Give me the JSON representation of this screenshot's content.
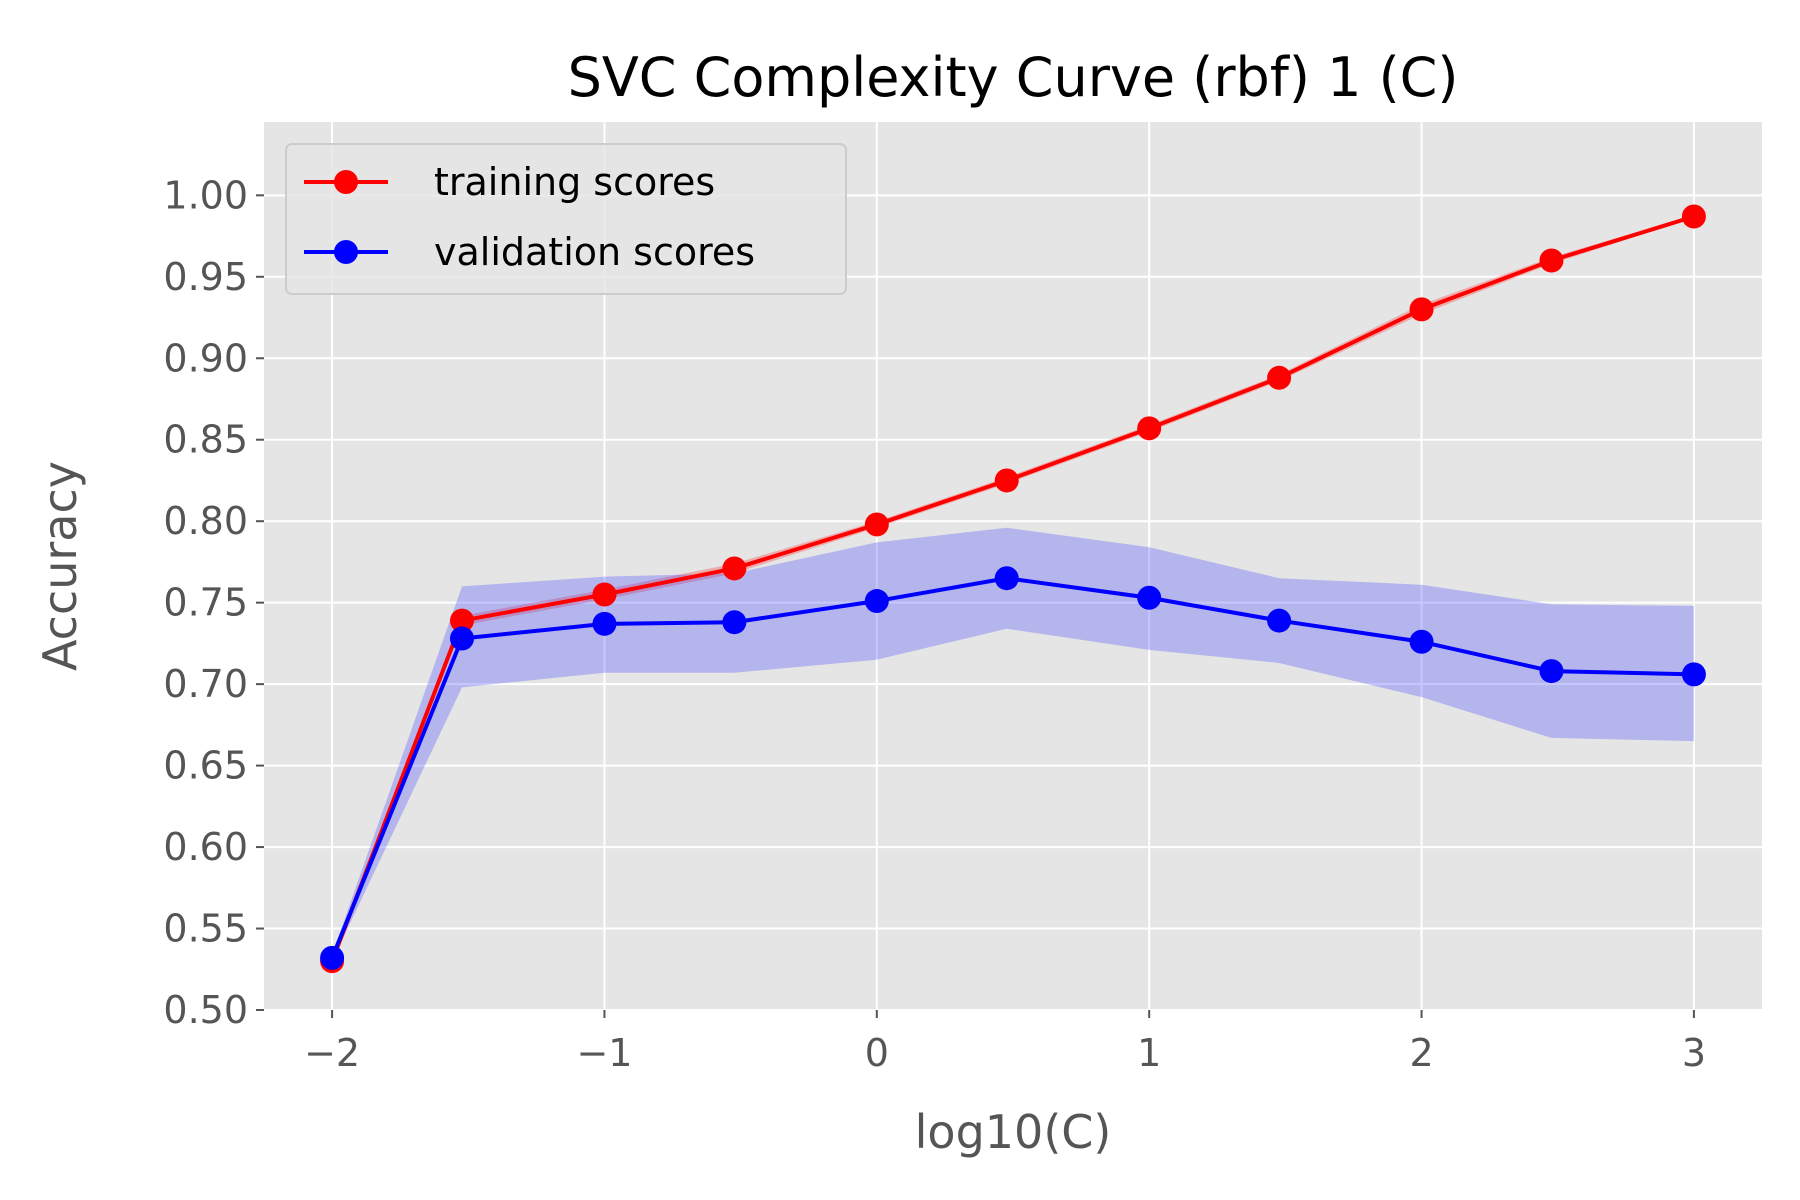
{
  "chart_data": {
    "type": "line",
    "title": "SVC Complexity Curve (rbf) 1 (C)",
    "xlabel": "log10(C)",
    "ylabel": "Accuracy",
    "xlim": [
      -2.25,
      3.25
    ],
    "ylim": [
      0.5,
      1.045
    ],
    "xticks": [
      -2,
      -1,
      0,
      1,
      2,
      3
    ],
    "xtick_labels": [
      "−2",
      "−1",
      "0",
      "1",
      "2",
      "3"
    ],
    "yticks": [
      0.5,
      0.55,
      0.6,
      0.65,
      0.7,
      0.75,
      0.8,
      0.85,
      0.9,
      0.95,
      1.0
    ],
    "ytick_labels": [
      "0.50",
      "0.55",
      "0.60",
      "0.65",
      "0.70",
      "0.75",
      "0.80",
      "0.85",
      "0.90",
      "0.95",
      "1.00"
    ],
    "grid": true,
    "legend_position": "top-left",
    "background_color": "#e5e5e5",
    "x": [
      -2.0,
      -1.523,
      -1.0,
      -0.523,
      0.0,
      0.477,
      1.0,
      1.477,
      2.0,
      2.477,
      3.0
    ],
    "series": [
      {
        "name": "training scores",
        "color": "#ff0000",
        "band_color": "#ff0000",
        "values": [
          0.53,
          0.739,
          0.755,
          0.771,
          0.798,
          0.825,
          0.857,
          0.888,
          0.93,
          0.96,
          0.987
        ],
        "lower": [
          0.528,
          0.736,
          0.752,
          0.768,
          0.796,
          0.823,
          0.855,
          0.886,
          0.927,
          0.958,
          0.986
        ],
        "upper": [
          0.532,
          0.742,
          0.758,
          0.774,
          0.8,
          0.827,
          0.859,
          0.89,
          0.933,
          0.962,
          0.988
        ]
      },
      {
        "name": "validation scores",
        "color": "#0000ff",
        "band_color": "#4444ff",
        "values": [
          0.532,
          0.728,
          0.737,
          0.738,
          0.751,
          0.765,
          0.753,
          0.739,
          0.726,
          0.708,
          0.706
        ],
        "lower": [
          0.53,
          0.698,
          0.707,
          0.707,
          0.715,
          0.734,
          0.721,
          0.713,
          0.692,
          0.667,
          0.665
        ],
        "upper": [
          0.534,
          0.76,
          0.766,
          0.768,
          0.787,
          0.796,
          0.784,
          0.765,
          0.761,
          0.749,
          0.748
        ]
      }
    ]
  }
}
